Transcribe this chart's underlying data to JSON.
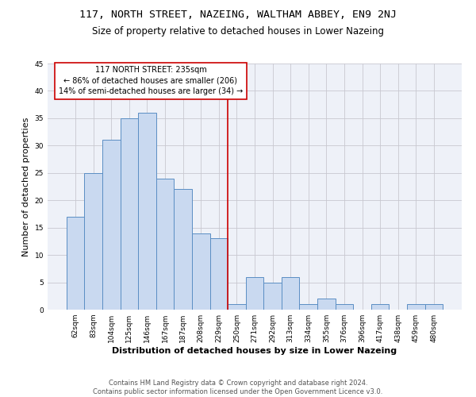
{
  "title": "117, NORTH STREET, NAZEING, WALTHAM ABBEY, EN9 2NJ",
  "subtitle": "Size of property relative to detached houses in Lower Nazeing",
  "xlabel": "Distribution of detached houses by size in Lower Nazeing",
  "ylabel": "Number of detached properties",
  "categories": [
    "62sqm",
    "83sqm",
    "104sqm",
    "125sqm",
    "146sqm",
    "167sqm",
    "187sqm",
    "208sqm",
    "229sqm",
    "250sqm",
    "271sqm",
    "292sqm",
    "313sqm",
    "334sqm",
    "355sqm",
    "376sqm",
    "396sqm",
    "417sqm",
    "438sqm",
    "459sqm",
    "480sqm"
  ],
  "values": [
    17,
    25,
    31,
    35,
    36,
    24,
    22,
    14,
    13,
    1,
    6,
    5,
    6,
    1,
    2,
    1,
    0,
    1,
    0,
    1,
    1
  ],
  "bar_color": "#c9d9f0",
  "bar_edge_color": "#5b8ec4",
  "property_line_x": 8.5,
  "property_label": "117 NORTH STREET: 235sqm",
  "annotation_line1": "← 86% of detached houses are smaller (206)",
  "annotation_line2": "14% of semi-detached houses are larger (34) →",
  "annotation_box_color": "#ffffff",
  "annotation_box_edge_color": "#cc0000",
  "vline_color": "#cc0000",
  "ylim": [
    0,
    45
  ],
  "yticks": [
    0,
    5,
    10,
    15,
    20,
    25,
    30,
    35,
    40,
    45
  ],
  "grid_color": "#c8c8d0",
  "background_color": "#eef1f8",
  "footer": "Contains HM Land Registry data © Crown copyright and database right 2024.\nContains public sector information licensed under the Open Government Licence v3.0.",
  "title_fontsize": 9.5,
  "subtitle_fontsize": 8.5,
  "xlabel_fontsize": 8,
  "ylabel_fontsize": 8,
  "tick_fontsize": 6.5,
  "footer_fontsize": 6,
  "annotation_fontsize": 7
}
